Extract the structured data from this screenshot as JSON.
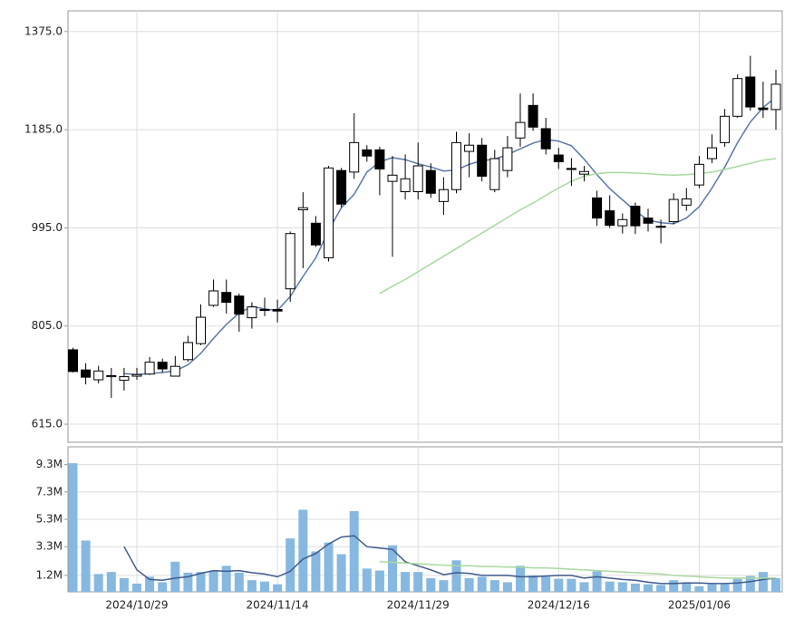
{
  "chart_data": [
    {
      "type": "candlestick",
      "ylim": [
        580,
        1415
      ],
      "yticks": [
        {
          "value": 1375,
          "label": "1375.0"
        },
        {
          "value": 1185,
          "label": "1185.0"
        },
        {
          "value": 995,
          "label": "995.0"
        },
        {
          "value": 805,
          "label": "805.0"
        },
        {
          "value": 615,
          "label": "615.0"
        }
      ],
      "grid": true,
      "up_color": "#ffffff",
      "down_color": "#000000",
      "open": [
        759,
        720,
        701,
        707,
        700,
        708,
        712,
        735,
        708,
        740,
        771,
        845,
        870,
        863,
        821,
        836,
        837,
        877,
        1030,
        1004,
        937,
        1106,
        1103,
        1146,
        1146,
        1085,
        1065,
        1065,
        1106,
        1046,
        1069,
        1143,
        1155,
        1069,
        1106,
        1169,
        1232,
        1187,
        1136,
        1110,
        1099,
        1053,
        1028,
        999,
        1037,
        1014,
        998,
        1007,
        1039,
        1078,
        1129,
        1160,
        1211,
        1287,
        1227,
        1224
      ],
      "high": [
        763,
        733,
        728,
        724,
        724,
        724,
        745,
        742,
        747,
        786,
        847,
        895,
        895,
        868,
        851,
        860,
        856,
        988,
        1064,
        1018,
        1115,
        1111,
        1217,
        1155,
        1152,
        1134,
        1137,
        1160,
        1120,
        1093,
        1181,
        1178,
        1169,
        1146,
        1173,
        1255,
        1255,
        1208,
        1150,
        1130,
        1115,
        1067,
        1058,
        1023,
        1044,
        1032,
        1011,
        1062,
        1072,
        1134,
        1176,
        1225,
        1292,
        1328,
        1278,
        1301
      ],
      "low": [
        715,
        692,
        694,
        666,
        680,
        701,
        710,
        715,
        708,
        736,
        768,
        842,
        829,
        794,
        800,
        824,
        812,
        852,
        917,
        958,
        930,
        1035,
        1090,
        1123,
        1058,
        939,
        1050,
        1050,
        1053,
        1020,
        1062,
        1093,
        1085,
        1064,
        1093,
        1152,
        1183,
        1137,
        1109,
        1076,
        1085,
        999,
        995,
        984,
        983,
        988,
        965,
        1002,
        1028,
        1072,
        1120,
        1152,
        1208,
        1222,
        1208,
        1185
      ],
      "close": [
        717,
        706,
        718,
        709,
        707,
        711,
        735,
        722,
        727,
        773,
        822,
        873,
        851,
        828,
        842,
        837,
        834,
        984,
        1034,
        962,
        1111,
        1041,
        1160,
        1134,
        1109,
        1097,
        1090,
        1115,
        1062,
        1069,
        1160,
        1155,
        1095,
        1129,
        1150,
        1199,
        1190,
        1148,
        1123,
        1108,
        1104,
        1014,
        1000,
        1011,
        999,
        1004,
        997,
        1050,
        1051,
        1118,
        1150,
        1211,
        1284,
        1229,
        1224,
        1273
      ],
      "series": [
        {
          "color": "#5a78a8",
          "values": [
            null,
            null,
            null,
            null,
            713,
            711,
            713,
            715,
            718,
            730,
            752,
            781,
            808,
            830,
            843,
            838,
            835,
            862,
            901,
            937,
            990,
            1034,
            1060,
            1103,
            1123,
            1131,
            1127,
            1119,
            1113,
            1105,
            1107,
            1118,
            1125,
            1128,
            1137,
            1148,
            1159,
            1166,
            1163,
            1154,
            1128,
            1098,
            1071,
            1049,
            1028,
            1010,
            1005,
            1003,
            1014,
            1036,
            1072,
            1113,
            1160,
            1200,
            1228,
            1248
          ]
        },
        {
          "color": "#a9d8a1",
          "values": [
            null,
            null,
            null,
            null,
            null,
            null,
            null,
            null,
            null,
            null,
            null,
            null,
            null,
            null,
            null,
            null,
            null,
            null,
            null,
            null,
            null,
            null,
            null,
            null,
            868,
            882,
            895,
            910,
            925,
            940,
            955,
            970,
            985,
            1000,
            1015,
            1030,
            1043,
            1058,
            1072,
            1085,
            1095,
            1100,
            1102,
            1102,
            1101,
            1100,
            1098,
            1097,
            1098,
            1100,
            1103,
            1108,
            1114,
            1120,
            1126,
            1129
          ]
        }
      ]
    },
    {
      "type": "bar",
      "categories": [
        null,
        null,
        null,
        null,
        null,
        "2024/10/29",
        null,
        null,
        null,
        null,
        null,
        null,
        null,
        null,
        null,
        null,
        "2024/11/14",
        null,
        null,
        null,
        null,
        null,
        null,
        null,
        null,
        null,
        null,
        "2024/11/29",
        null,
        null,
        null,
        null,
        null,
        null,
        null,
        null,
        null,
        null,
        "2024/12/16",
        null,
        null,
        null,
        null,
        null,
        null,
        null,
        null,
        null,
        null,
        "2025/01/06",
        null,
        null,
        null,
        null,
        null,
        null
      ],
      "ylim": [
        0,
        10.6
      ],
      "yticks": [
        {
          "value": 9.3,
          "label": "9.3M"
        },
        {
          "value": 7.3,
          "label": "7.3M"
        },
        {
          "value": 5.3,
          "label": "5.3M"
        },
        {
          "value": 3.3,
          "label": "3.3M"
        },
        {
          "value": 1.2,
          "label": "1.2M"
        }
      ],
      "grid": true,
      "color": "#86b8e0",
      "values": [
        9.4,
        3.75,
        1.3,
        1.45,
        1.0,
        0.6,
        1.1,
        0.7,
        2.2,
        1.4,
        1.45,
        1.5,
        1.9,
        1.4,
        0.85,
        0.75,
        0.55,
        3.9,
        6.0,
        2.95,
        3.6,
        2.75,
        5.9,
        1.7,
        1.55,
        3.4,
        1.45,
        1.45,
        1.0,
        0.85,
        2.3,
        1.0,
        1.1,
        0.85,
        0.7,
        1.9,
        1.2,
        1.1,
        0.95,
        0.95,
        0.7,
        1.5,
        0.75,
        0.7,
        0.6,
        0.55,
        0.5,
        0.85,
        0.7,
        0.4,
        0.55,
        0.55,
        0.95,
        1.15,
        1.45,
        1.0
      ],
      "series": [
        {
          "color": "#3f5a8c",
          "values": [
            null,
            null,
            null,
            null,
            3.3,
            1.6,
            0.9,
            0.85,
            1.0,
            1.1,
            1.35,
            1.55,
            1.5,
            1.55,
            1.4,
            1.3,
            1.1,
            1.5,
            2.4,
            2.8,
            3.5,
            4.0,
            4.1,
            3.3,
            3.2,
            3.1,
            2.2,
            1.9,
            1.6,
            1.25,
            1.4,
            1.35,
            1.2,
            1.2,
            1.2,
            1.1,
            1.1,
            1.15,
            1.2,
            1.2,
            1.0,
            1.1,
            1.0,
            0.9,
            0.85,
            0.7,
            0.6,
            0.6,
            0.65,
            0.65,
            0.6,
            0.6,
            0.65,
            0.75,
            0.9,
            1.0
          ]
        },
        {
          "color": "#a9d8a1",
          "values": [
            null,
            null,
            null,
            null,
            null,
            null,
            null,
            null,
            null,
            null,
            null,
            null,
            null,
            null,
            null,
            null,
            null,
            null,
            null,
            null,
            null,
            null,
            null,
            null,
            2.2,
            2.15,
            2.1,
            2.05,
            2.0,
            1.95,
            1.9,
            1.9,
            1.85,
            1.85,
            1.8,
            1.8,
            1.75,
            1.75,
            1.7,
            1.65,
            1.6,
            1.55,
            1.5,
            1.45,
            1.4,
            1.35,
            1.3,
            1.2,
            1.15,
            1.1,
            1.05,
            1.0,
            1.0,
            1.0,
            1.0,
            1.0
          ]
        }
      ]
    }
  ]
}
